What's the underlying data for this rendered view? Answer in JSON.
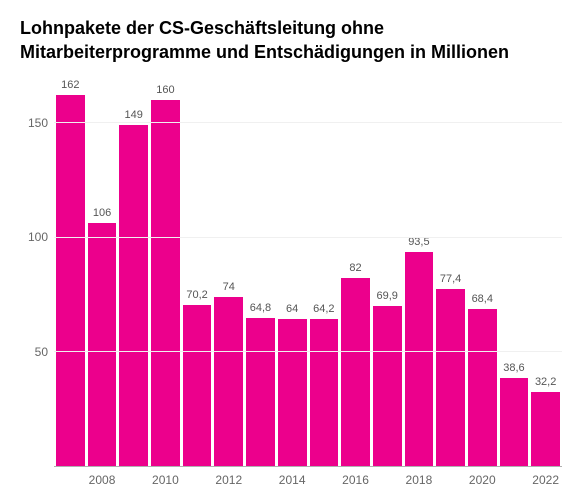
{
  "chart": {
    "type": "bar",
    "title": "Lohnpakete der CS-Geschäftsleitung ohne Mitarbeiterprogramme und Entschädigungen in Millionen",
    "title_fontsize": 18,
    "title_fontweight": 700,
    "title_color": "#000000",
    "background_color": "#ffffff",
    "bar_color": "#ec008c",
    "grid_color": "#f0f0f0",
    "axis_line_color": "#b0b0b0",
    "tick_color": "#666666",
    "value_label_color": "#555555",
    "value_label_fontsize": 11,
    "tick_fontsize": 12,
    "ylim": [
      0,
      170
    ],
    "yticks": [
      50,
      100,
      150
    ],
    "xticks": [
      "2008",
      "2010",
      "2012",
      "2014",
      "2016",
      "2018",
      "2020",
      "2022"
    ],
    "years": [
      2007,
      2008,
      2009,
      2010,
      2011,
      2012,
      2013,
      2014,
      2015,
      2016,
      2017,
      2018,
      2019,
      2020,
      2021,
      2022
    ],
    "values": [
      162,
      106,
      149,
      160,
      70.2,
      74,
      64.8,
      64,
      64.2,
      82,
      69.9,
      93.5,
      77.4,
      68.4,
      38.6,
      32.2
    ],
    "value_labels": [
      "162",
      "106",
      "149",
      "160",
      "70,2",
      "74",
      "64,8",
      "64",
      "64,2",
      "82",
      "69,9",
      "93,5",
      "77,4",
      "68,4",
      "38,6",
      "32,2"
    ]
  }
}
